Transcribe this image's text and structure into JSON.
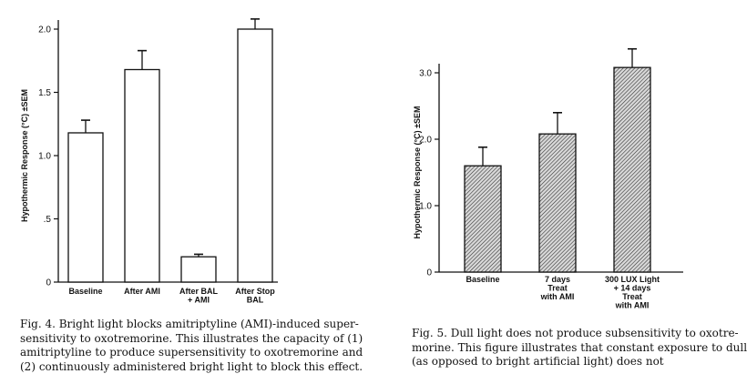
{
  "chart_data": [
    {
      "id": "fig4",
      "type": "bar",
      "ylabel": "Hypothermic Response (°C) ±SEM",
      "ylim": [
        0,
        2.0
      ],
      "yticks": [
        0,
        0.5,
        1.0,
        1.5,
        2.0
      ],
      "ytick_labels": [
        "0",
        ".5",
        "1.0",
        "1.5",
        "2.0"
      ],
      "categories": [
        [
          "Baseline"
        ],
        [
          "After AMI"
        ],
        [
          "After BAL",
          "+ AMI"
        ],
        [
          "After Stop",
          "BAL"
        ]
      ],
      "values": [
        1.18,
        1.68,
        0.2,
        2.0
      ],
      "errors": [
        0.1,
        0.15,
        0.02,
        0.08
      ],
      "fill": "white"
    },
    {
      "id": "fig5",
      "type": "bar",
      "ylabel": "Hypothermic Response (°C) ±SEM",
      "ylim": [
        0,
        3.0
      ],
      "yticks": [
        0,
        1.0,
        2.0,
        3.0
      ],
      "ytick_labels": [
        "0",
        "1.0",
        "2.0",
        "3.0"
      ],
      "categories": [
        [
          "Baseline"
        ],
        [
          "7 days",
          "Treat",
          "with AMI"
        ],
        [
          "300 LUX Light",
          "+ 14 days",
          "Treat",
          "with AMI"
        ]
      ],
      "values": [
        1.6,
        2.08,
        3.08
      ],
      "errors": [
        0.28,
        0.32,
        0.28
      ],
      "fill": "hatched"
    }
  ],
  "captions": {
    "fig4": [
      "Fig. 4. Bright light blocks amitriptyline (AMI)-induced super-",
      "sensitivity to oxotremorine. This illustrates the capacity of (1)",
      "amitriptyline to produce supersensitivity to oxotremorine and",
      "(2) continuously administered bright light to block this effect."
    ],
    "fig5": [
      "Fig. 5. Dull light does not produce subsensitivity to oxotre-",
      "morine. This figure illustrates that constant exposure to dull",
      "(as opposed to bright artificial light) does not"
    ]
  }
}
